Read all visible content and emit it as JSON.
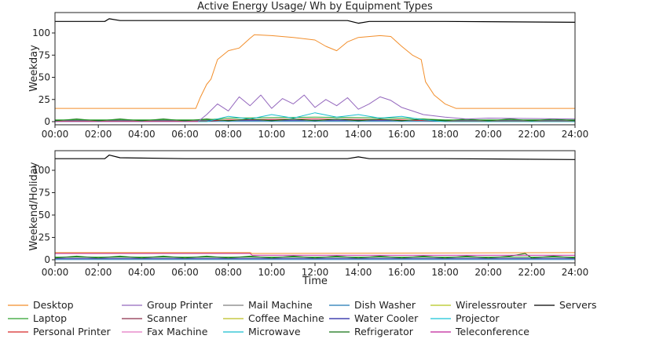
{
  "chart_data": {
    "type": "line",
    "title": "Active Energy Usage/ Wh by Equipment Types",
    "xlabel": "Time",
    "x_ticks": [
      "00:00",
      "02:00",
      "04:00",
      "06:00",
      "08:00",
      "10:00",
      "12:00",
      "14:00",
      "16:00",
      "18:00",
      "20:00",
      "22:00",
      "24:00"
    ],
    "y_ticks": [
      "0",
      "25",
      "50",
      "75",
      "100"
    ],
    "ylim": [
      0,
      125
    ],
    "grid": false,
    "legend_position": "bottom",
    "legend": [
      {
        "name": "Desktop",
        "color": "#f28e2b"
      },
      {
        "name": "Laptop",
        "color": "#2ca02c"
      },
      {
        "name": "Personal Printer",
        "color": "#d62728"
      },
      {
        "name": "Group Printer",
        "color": "#9467bd"
      },
      {
        "name": "Scanner",
        "color": "#8c2d4a"
      },
      {
        "name": "Fax Machine",
        "color": "#e377c2"
      },
      {
        "name": "Mail Machine",
        "color": "#7f7f7f"
      },
      {
        "name": "Coffee Machine",
        "color": "#bcbd22"
      },
      {
        "name": "Microwave",
        "color": "#17becf"
      },
      {
        "name": "Dish Washer",
        "color": "#1f77b4"
      },
      {
        "name": "Water Cooler",
        "color": "#1f1fa0"
      },
      {
        "name": "Refrigerator",
        "color": "#107010"
      },
      {
        "name": "Wirelessrouter",
        "color": "#b5c51c"
      },
      {
        "name": "Projector",
        "color": "#17c3d6"
      },
      {
        "name": "Teleconference",
        "color": "#c0209a"
      },
      {
        "name": "Servers",
        "color": "#000000"
      }
    ],
    "panels": [
      {
        "ylabel": "Weekday",
        "series": [
          {
            "name": "Servers",
            "color": "#000000",
            "points": [
              [
                0,
                113
              ],
              [
                2.3,
                113
              ],
              [
                2.5,
                116
              ],
              [
                3,
                114
              ],
              [
                6,
                114
              ],
              [
                10,
                114
              ],
              [
                13.5,
                114
              ],
              [
                14,
                111
              ],
              [
                14.5,
                113
              ],
              [
                18,
                113
              ],
              [
                24,
                112
              ]
            ]
          },
          {
            "name": "Desktop",
            "color": "#f28e2b",
            "points": [
              [
                0,
                15
              ],
              [
                6.5,
                15
              ],
              [
                6.7,
                27
              ],
              [
                7,
                42
              ],
              [
                7.2,
                48
              ],
              [
                7.5,
                70
              ],
              [
                8,
                80
              ],
              [
                8.5,
                83
              ],
              [
                9,
                94
              ],
              [
                9.2,
                98
              ],
              [
                10,
                97
              ],
              [
                11,
                95
              ],
              [
                12,
                92
              ],
              [
                12.5,
                85
              ],
              [
                13,
                80
              ],
              [
                13.5,
                90
              ],
              [
                14,
                95
              ],
              [
                15,
                97
              ],
              [
                15.5,
                96
              ],
              [
                16,
                85
              ],
              [
                16.5,
                75
              ],
              [
                16.9,
                70
              ],
              [
                17.1,
                45
              ],
              [
                17.5,
                30
              ],
              [
                18,
                20
              ],
              [
                18.5,
                15
              ],
              [
                24,
                15
              ]
            ]
          },
          {
            "name": "Group Printer",
            "color": "#9467bd",
            "points": [
              [
                0,
                0
              ],
              [
                6.6,
                0
              ],
              [
                7,
                8
              ],
              [
                7.5,
                20
              ],
              [
                8,
                12
              ],
              [
                8.5,
                28
              ],
              [
                9,
                18
              ],
              [
                9.5,
                30
              ],
              [
                10,
                15
              ],
              [
                10.5,
                26
              ],
              [
                11,
                20
              ],
              [
                11.5,
                30
              ],
              [
                12,
                16
              ],
              [
                12.5,
                25
              ],
              [
                13,
                18
              ],
              [
                13.5,
                27
              ],
              [
                14,
                14
              ],
              [
                14.5,
                20
              ],
              [
                15,
                28
              ],
              [
                15.5,
                24
              ],
              [
                16,
                16
              ],
              [
                16.5,
                12
              ],
              [
                17,
                8
              ],
              [
                18,
                5
              ],
              [
                19,
                3
              ],
              [
                20,
                4
              ],
              [
                24,
                3
              ]
            ]
          },
          {
            "name": "Microwave",
            "color": "#17becf",
            "points": [
              [
                0,
                0
              ],
              [
                7,
                0
              ],
              [
                8,
                6
              ],
              [
                9,
                3
              ],
              [
                10,
                8
              ],
              [
                11,
                4
              ],
              [
                12,
                10
              ],
              [
                13,
                5
              ],
              [
                14,
                8
              ],
              [
                15,
                4
              ],
              [
                16,
                6
              ],
              [
                17,
                2
              ],
              [
                18,
                0
              ],
              [
                24,
                0
              ]
            ]
          },
          {
            "name": "Laptop",
            "color": "#2ca02c",
            "points": [
              [
                0,
                2
              ],
              [
                7,
                2
              ],
              [
                8,
                4
              ],
              [
                12,
                5
              ],
              [
                16,
                4
              ],
              [
                18,
                2
              ],
              [
                24,
                2
              ]
            ]
          },
          {
            "name": "Refrigerator",
            "color": "#107010",
            "points": [
              [
                0,
                1
              ],
              [
                1,
                3
              ],
              [
                2,
                1
              ],
              [
                3,
                3
              ],
              [
                4,
                1
              ],
              [
                5,
                3
              ],
              [
                6,
                1
              ],
              [
                7,
                3
              ],
              [
                8,
                1
              ],
              [
                9,
                3
              ],
              [
                10,
                1
              ],
              [
                11,
                3
              ],
              [
                12,
                1
              ],
              [
                13,
                3
              ],
              [
                14,
                1
              ],
              [
                15,
                3
              ],
              [
                16,
                1
              ],
              [
                17,
                3
              ],
              [
                18,
                1
              ],
              [
                19,
                3
              ],
              [
                20,
                1
              ],
              [
                21,
                3
              ],
              [
                22,
                1
              ],
              [
                23,
                3
              ],
              [
                24,
                1
              ]
            ]
          },
          {
            "name": "Personal Printer",
            "color": "#d62728",
            "points": [
              [
                0,
                0.5
              ],
              [
                7,
                0.5
              ],
              [
                8,
                2
              ],
              [
                12,
                3
              ],
              [
                16,
                2
              ],
              [
                18,
                0.5
              ],
              [
                24,
                0.5
              ]
            ]
          },
          {
            "name": "Water Cooler",
            "color": "#1f1fa0",
            "points": [
              [
                0,
                1.5
              ],
              [
                24,
                1.5
              ]
            ]
          },
          {
            "name": "Dish Washer",
            "color": "#1f77b4",
            "points": [
              [
                0,
                0.3
              ],
              [
                24,
                0.3
              ]
            ]
          }
        ]
      },
      {
        "ylabel": "Weekend/Holiday",
        "series": [
          {
            "name": "Servers",
            "color": "#000000",
            "points": [
              [
                0,
                113
              ],
              [
                2.3,
                113
              ],
              [
                2.5,
                117
              ],
              [
                3,
                114
              ],
              [
                6,
                113
              ],
              [
                10,
                113
              ],
              [
                13.5,
                113
              ],
              [
                14,
                115
              ],
              [
                14.5,
                113
              ],
              [
                18,
                113
              ],
              [
                24,
                112
              ]
            ]
          },
          {
            "name": "Desktop",
            "color": "#f28e2b",
            "points": [
              [
                0,
                8
              ],
              [
                9,
                8
              ],
              [
                9.1,
                7
              ],
              [
                24,
                8
              ]
            ]
          },
          {
            "name": "Teleconference",
            "color": "#c0209a",
            "points": [
              [
                0,
                7
              ],
              [
                9,
                7
              ],
              [
                9.1,
                5
              ],
              [
                24,
                5
              ]
            ]
          },
          {
            "name": "Refrigerator",
            "color": "#107010",
            "points": [
              [
                0,
                2
              ],
              [
                1,
                4
              ],
              [
                2,
                2
              ],
              [
                3,
                4
              ],
              [
                4,
                2
              ],
              [
                5,
                4
              ],
              [
                6,
                2
              ],
              [
                7,
                4
              ],
              [
                8,
                2
              ],
              [
                9,
                4
              ],
              [
                10,
                2
              ],
              [
                11,
                4
              ],
              [
                12,
                2
              ],
              [
                13,
                4
              ],
              [
                14,
                2
              ],
              [
                15,
                4
              ],
              [
                16,
                2
              ],
              [
                17,
                4
              ],
              [
                18,
                2
              ],
              [
                19,
                4
              ],
              [
                20,
                2
              ],
              [
                21,
                4
              ],
              [
                21.7,
                7
              ],
              [
                22,
                2
              ],
              [
                23,
                4
              ],
              [
                24,
                2
              ]
            ]
          },
          {
            "name": "Laptop",
            "color": "#2ca02c",
            "points": [
              [
                0,
                3
              ],
              [
                24,
                3
              ]
            ]
          },
          {
            "name": "Water Cooler",
            "color": "#1f1fa0",
            "points": [
              [
                0,
                1.5
              ],
              [
                24,
                1.5
              ]
            ]
          },
          {
            "name": "Dish Washer",
            "color": "#1f77b4",
            "points": [
              [
                0,
                0.3
              ],
              [
                24,
                0.3
              ]
            ]
          }
        ]
      }
    ]
  }
}
